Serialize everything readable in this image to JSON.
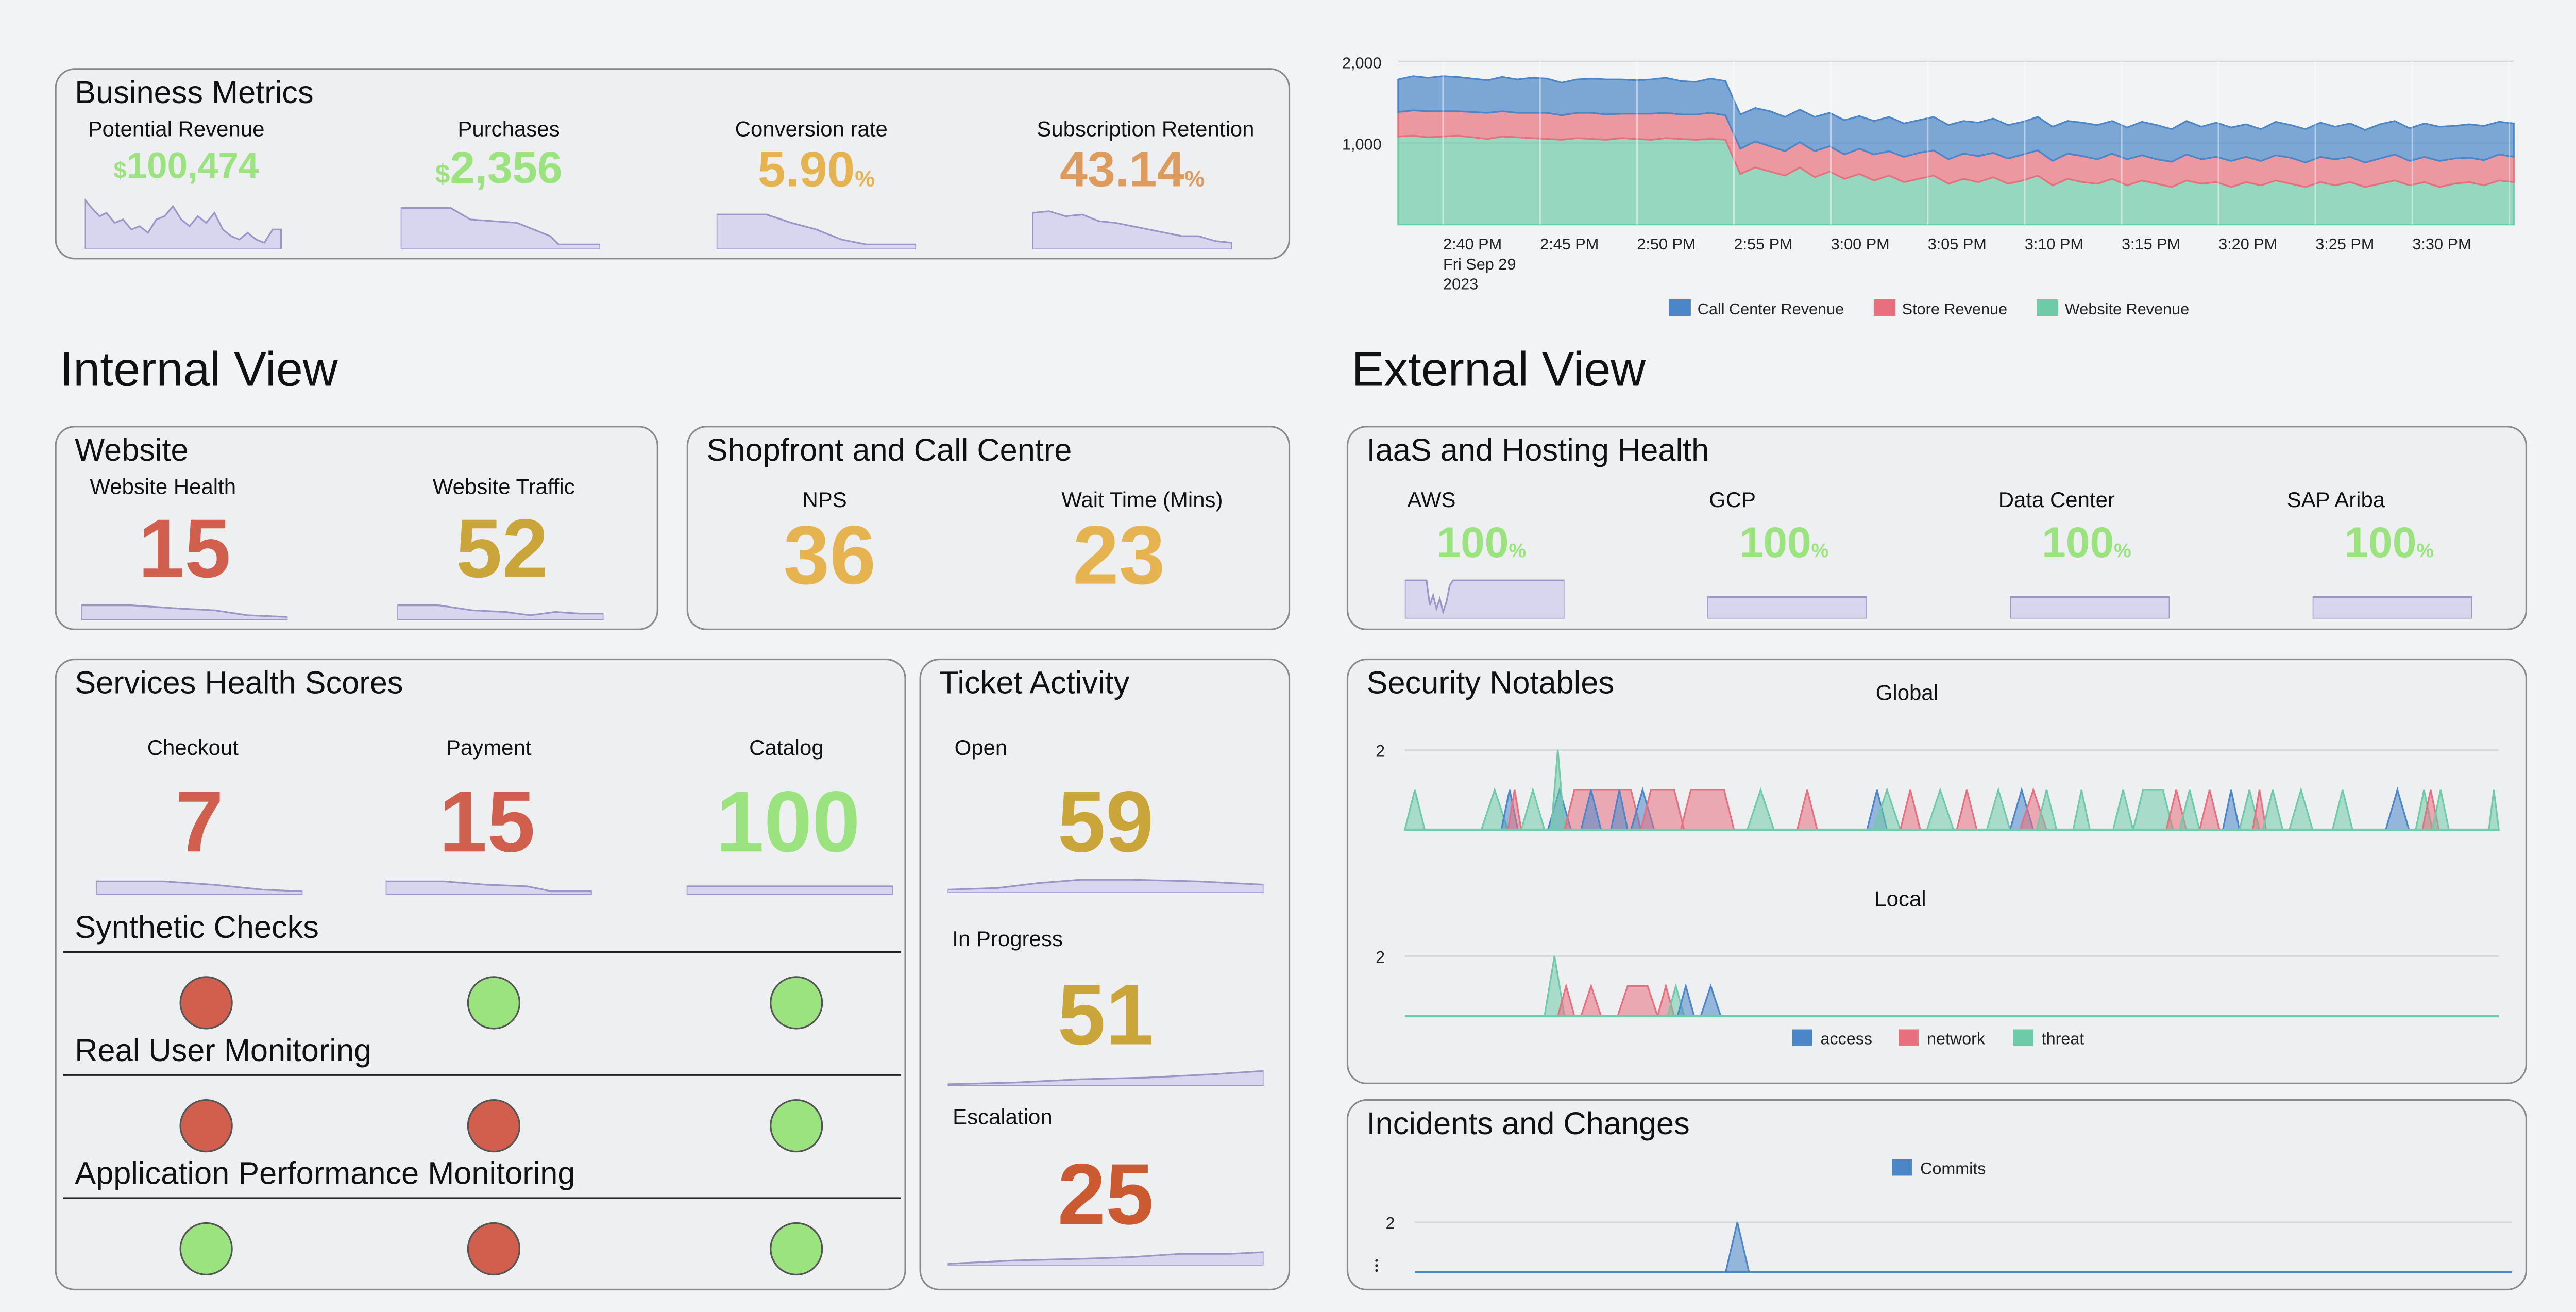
{
  "colors": {
    "green": "#9ae37e",
    "red": "#d0604d",
    "gold": "#c9a53a",
    "orange": "#e5b450",
    "salmon": "#dd9b5e",
    "dark_orange": "#cc5a31",
    "spark_fill": "#d8d6ee",
    "spark_line": "#9b96c8",
    "blue": "#4a86c8",
    "pink": "#e8707e",
    "teal": "#6fcaa8"
  },
  "business": {
    "title": "Business Metrics",
    "metrics": [
      {
        "label": "Potential Revenue",
        "prefix": "$",
        "value": "100,474",
        "suffix": ""
      },
      {
        "label": "Purchases",
        "prefix": "$",
        "value": "2,356",
        "suffix": ""
      },
      {
        "label": "Conversion rate",
        "prefix": "",
        "value": "5.90",
        "suffix": "%"
      },
      {
        "label": "Subscription Retention",
        "prefix": "",
        "value": "43.14",
        "suffix": "%"
      }
    ]
  },
  "internal_view": {
    "title": "Internal View"
  },
  "external_view": {
    "title": "External View"
  },
  "website": {
    "title": "Website",
    "metrics": [
      {
        "label": "Website Health",
        "value": "15"
      },
      {
        "label": "Website Traffic",
        "value": "52"
      }
    ]
  },
  "shopfront": {
    "title": "Shopfront and Call Centre",
    "metrics": [
      {
        "label": "NPS",
        "value": "36"
      },
      {
        "label": "Wait Time (Mins)",
        "value": "23"
      }
    ]
  },
  "services": {
    "title": "Services Health Scores",
    "metrics": [
      {
        "label": "Checkout",
        "value": "7"
      },
      {
        "label": "Payment",
        "value": "15"
      },
      {
        "label": "Catalog",
        "value": "100"
      }
    ],
    "sections": [
      {
        "title": "Synthetic Checks",
        "status": [
          "red",
          "green",
          "green"
        ]
      },
      {
        "title": "Real User Monitoring",
        "status": [
          "red",
          "red",
          "green"
        ]
      },
      {
        "title": "Application Performance Monitoring",
        "status": [
          "green",
          "red",
          "green"
        ]
      }
    ]
  },
  "tickets": {
    "title": "Ticket Activity",
    "metrics": [
      {
        "label": "Open",
        "value": "59"
      },
      {
        "label": "In Progress",
        "value": "51"
      },
      {
        "label": "Escalation",
        "value": "25"
      }
    ]
  },
  "iaas": {
    "title": "IaaS and Hosting Health",
    "metrics": [
      {
        "label": "AWS",
        "value": "100",
        "suffix": "%"
      },
      {
        "label": "GCP",
        "value": "100",
        "suffix": "%"
      },
      {
        "label": "Data Center",
        "value": "100",
        "suffix": "%"
      },
      {
        "label": "SAP Ariba",
        "value": "100",
        "suffix": "%"
      }
    ]
  },
  "security": {
    "title": "Security Notables",
    "global_label": "Global",
    "local_label": "Local",
    "y_tick": "2",
    "legend": [
      "access",
      "network",
      "threat"
    ]
  },
  "incidents": {
    "title": "Incidents and Changes",
    "legend": [
      "Commits"
    ],
    "y_tick": "2"
  },
  "chart_data": {
    "type": "area",
    "stacked": true,
    "x_ticks": [
      "2:40 PM",
      "2:45 PM",
      "2:50 PM",
      "2:55 PM",
      "3:00 PM",
      "3:05 PM",
      "3:10 PM",
      "3:15 PM",
      "3:20 PM",
      "3:25 PM",
      "3:30 PM"
    ],
    "x_date_line1": "Fri Sep 29",
    "x_date_line2": "2023",
    "y_ticks": [
      "2,000",
      "1,000"
    ],
    "ylim": [
      0,
      2000
    ],
    "grid": true,
    "legend_position": "bottom",
    "series": [
      {
        "name": "Call Center Revenue",
        "color": "#4a86c8",
        "values": [
          400,
          420,
          410,
          430,
          420,
          410,
          400,
          420,
          410,
          430,
          420,
          400,
          410,
          420,
          430,
          420,
          410,
          420,
          430,
          410,
          400,
          420,
          420,
          420,
          410,
          430,
          420,
          400,
          420,
          410,
          420,
          400,
          410,
          420,
          410,
          400,
          410,
          420,
          400,
          410,
          420,
          410,
          400,
          410,
          420,
          400,
          410,
          420,
          400,
          390,
          410,
          420,
          400,
          410,
          400,
          420,
          410,
          400,
          390,
          410,
          400,
          410,
          420,
          400,
          410,
          400,
          420,
          410,
          400,
          410,
          420,
          400,
          410,
          420,
          400,
          410
        ]
      },
      {
        "name": "Store Revenue",
        "color": "#e8707e",
        "values": [
          300,
          310,
          320,
          310,
          300,
          310,
          320,
          310,
          300,
          310,
          320,
          300,
          310,
          320,
          310,
          300,
          310,
          320,
          310,
          300,
          310,
          320,
          300,
          310,
          320,
          310,
          300,
          310,
          320,
          310,
          300,
          310,
          320,
          300,
          310,
          320,
          310,
          300,
          310,
          320,
          300,
          310,
          320,
          310,
          300,
          310,
          320,
          300,
          310,
          320,
          310,
          300,
          310,
          320,
          300,
          310,
          320,
          310,
          300,
          310,
          320,
          300,
          310,
          320,
          310,
          300,
          310,
          320,
          300,
          310,
          320,
          310,
          300,
          310,
          320,
          310
        ]
      },
      {
        "name": "Website Revenue",
        "color": "#6fcaa8",
        "values": [
          1080,
          1090,
          1070,
          1080,
          1090,
          1070,
          1050,
          1080,
          1070,
          1060,
          1050,
          1040,
          1060,
          1050,
          1040,
          1060,
          1050,
          1040,
          1060,
          1050,
          1040,
          1050,
          1040,
          620,
          700,
          650,
          600,
          700,
          580,
          650,
          560,
          620,
          540,
          600,
          520,
          560,
          600,
          500,
          560,
          520,
          580,
          500,
          540,
          600,
          480,
          560,
          520,
          500,
          560,
          480,
          540,
          500,
          460,
          540,
          500,
          520,
          460,
          520,
          480,
          540,
          500,
          460,
          520,
          480,
          520,
          460,
          500,
          540,
          480,
          520,
          460,
          500,
          520,
          480,
          540,
          520
        ]
      }
    ]
  }
}
